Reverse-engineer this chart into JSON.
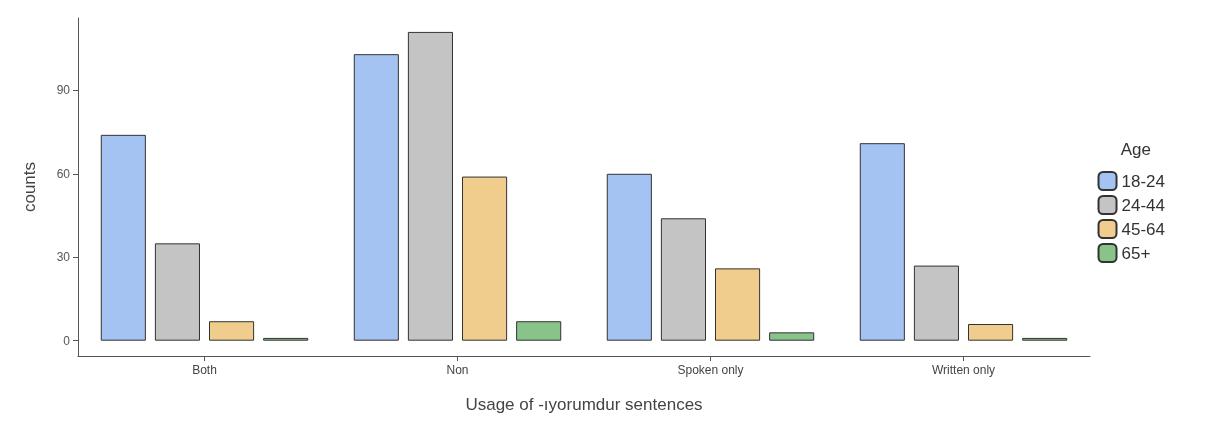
{
  "chart_data": {
    "type": "bar",
    "xlabel": "Usage of -ıyorumdur sentences",
    "ylabel": "counts",
    "legend_title": "Age",
    "legend": "right",
    "categories": [
      "Both",
      "Non",
      "Spoken only",
      "Written only"
    ],
    "series": [
      {
        "name": "18-24",
        "color": "#a4c3f2",
        "values": [
          74,
          103,
          60,
          71
        ]
      },
      {
        "name": "24-44",
        "color": "#c4c4c4",
        "values": [
          35,
          111,
          44,
          27
        ]
      },
      {
        "name": "45-64",
        "color": "#f0cd8c",
        "values": [
          7,
          59,
          26,
          6
        ]
      },
      {
        "name": "65+",
        "color": "#88c38a",
        "values": [
          1,
          7,
          3,
          1
        ]
      }
    ],
    "ylim": [
      -5.5,
      116
    ],
    "yticks": [
      0,
      30,
      60,
      90
    ],
    "grid": false
  }
}
